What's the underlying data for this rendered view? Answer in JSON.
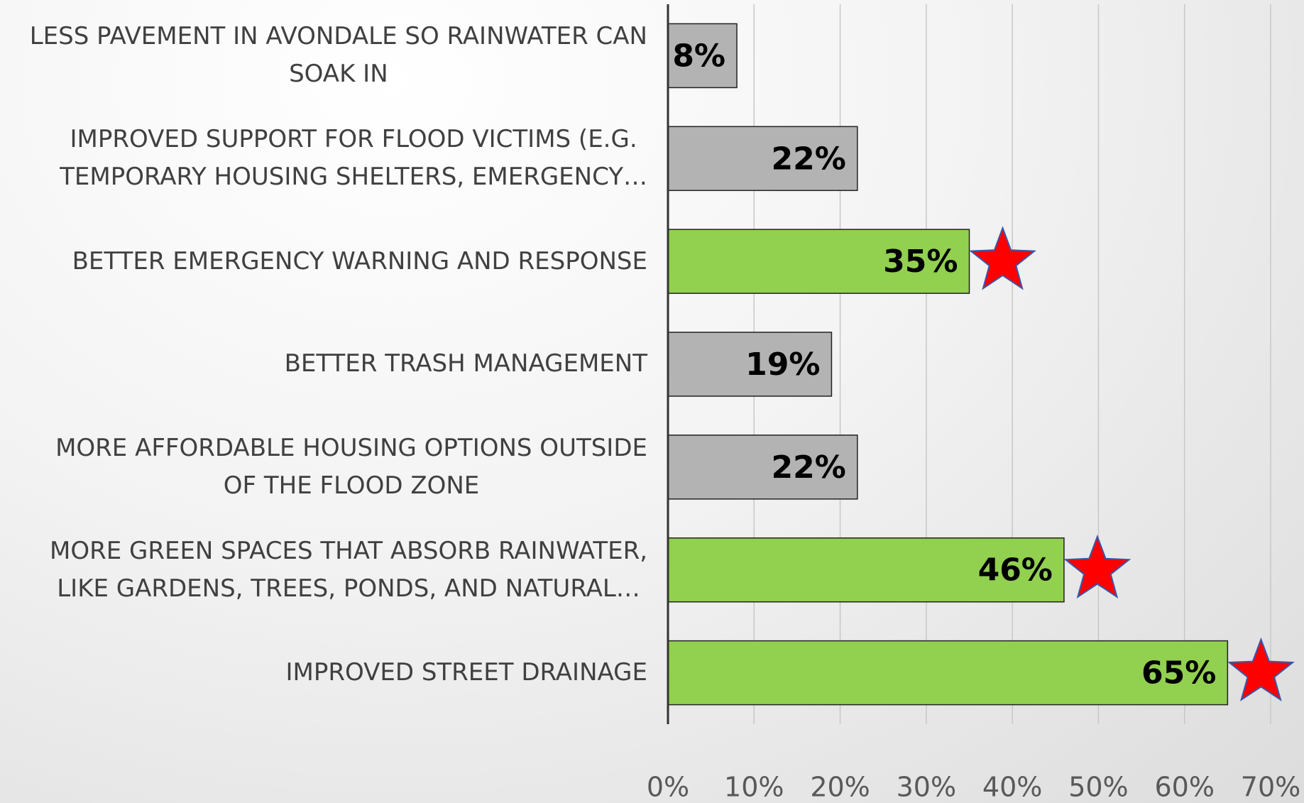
{
  "chart_data": {
    "type": "hbar",
    "categories": [
      "LESS PAVEMENT IN AVONDALE SO RAINWATER CAN\nSOAK IN",
      "IMPROVED SUPPORT FOR FLOOD VICTIMS (E.G.\nTEMPORARY HOUSING SHELTERS, EMERGENCY…",
      "BETTER EMERGENCY WARNING AND RESPONSE",
      "BETTER TRASH MANAGEMENT",
      "MORE AFFORDABLE HOUSING OPTIONS OUTSIDE\nOF THE FLOOD ZONE",
      "MORE GREEN SPACES THAT ABSORB RAINWATER,\nLIKE GARDENS, TREES, PONDS, AND NATURAL…",
      "IMPROVED STREET DRAINAGE"
    ],
    "values": [
      8,
      22,
      35,
      19,
      22,
      46,
      65
    ],
    "value_labels": [
      "8%",
      "22%",
      "35%",
      "19%",
      "22%",
      "46%",
      "65%"
    ],
    "colors": [
      "#b3b3b3",
      "#b3b3b3",
      "#92d050",
      "#b3b3b3",
      "#b3b3b3",
      "#92d050",
      "#92d050"
    ],
    "starred": [
      false,
      false,
      true,
      false,
      false,
      true,
      true
    ],
    "xlim": [
      0,
      70
    ],
    "xticks": [
      {
        "value": 0,
        "label": "0%"
      },
      {
        "value": 10,
        "label": "10%"
      },
      {
        "value": 20,
        "label": "20%"
      },
      {
        "value": 30,
        "label": "30%"
      },
      {
        "value": 40,
        "label": "40%"
      },
      {
        "value": 50,
        "label": "50%"
      },
      {
        "value": 60,
        "label": "60%"
      },
      {
        "value": 70,
        "label": "70%"
      }
    ],
    "grid": true
  }
}
